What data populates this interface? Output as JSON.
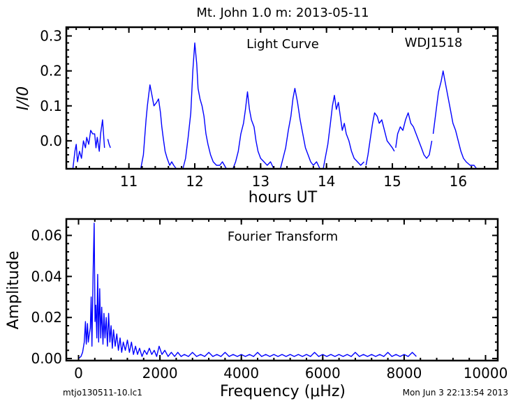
{
  "figure": {
    "suptitle": "Mt. John 1.0 m:  2013-05-11",
    "footer_left": "mtjo130511-10.lc1",
    "footer_right": "Mon Jun  3 22:13:54 2013"
  },
  "chart_data": [
    {
      "type": "line",
      "name": "light-curve",
      "annotation": "Light Curve",
      "object_label": "WDJ1518",
      "xlabel": "hours UT",
      "ylabel": "I/I0",
      "xlim": [
        10.05,
        16.6
      ],
      "ylim": [
        -0.08,
        0.325
      ],
      "xticks": [
        11,
        12,
        13,
        14,
        15,
        16
      ],
      "yticks": [
        0.0,
        0.1,
        0.2,
        0.3
      ],
      "ytick_labels": [
        "0.0",
        "0.1",
        "0.2",
        "0.3"
      ],
      "grid": false,
      "segments": [
        [
          [
            10.15,
            -0.08
          ],
          [
            10.18,
            -0.03
          ],
          [
            10.2,
            -0.01
          ],
          [
            10.22,
            -0.06
          ],
          [
            10.25,
            -0.03
          ],
          [
            10.28,
            -0.05
          ],
          [
            10.31,
            0.0
          ],
          [
            10.34,
            -0.02
          ],
          [
            10.36,
            0.01
          ],
          [
            10.39,
            -0.01
          ],
          [
            10.42,
            0.03
          ],
          [
            10.45,
            0.02
          ],
          [
            10.48,
            0.02
          ],
          [
            10.5,
            -0.02
          ],
          [
            10.52,
            0.01
          ],
          [
            10.55,
            -0.03
          ],
          [
            10.57,
            0.02
          ],
          [
            10.6,
            0.06
          ],
          [
            10.63,
            -0.02
          ]
        ],
        [
          [
            10.68,
            0.005
          ],
          [
            10.7,
            -0.01
          ],
          [
            10.72,
            -0.02
          ]
        ],
        [
          [
            11.18,
            -0.08
          ],
          [
            11.2,
            -0.06
          ],
          [
            11.22,
            -0.04
          ],
          [
            11.24,
            0.01
          ],
          [
            11.26,
            0.06
          ],
          [
            11.28,
            0.1
          ],
          [
            11.3,
            0.13
          ],
          [
            11.32,
            0.16
          ],
          [
            11.35,
            0.13
          ],
          [
            11.38,
            0.1
          ],
          [
            11.42,
            0.11
          ],
          [
            11.45,
            0.12
          ],
          [
            11.48,
            0.08
          ],
          [
            11.5,
            0.04
          ],
          [
            11.52,
            0.01
          ],
          [
            11.55,
            -0.03
          ],
          [
            11.58,
            -0.05
          ],
          [
            11.62,
            -0.07
          ],
          [
            11.65,
            -0.06
          ],
          [
            11.68,
            -0.07
          ],
          [
            11.72,
            -0.08
          ]
        ],
        [
          [
            11.82,
            -0.08
          ],
          [
            11.86,
            -0.05
          ],
          [
            11.9,
            0.01
          ],
          [
            11.94,
            0.08
          ],
          [
            11.97,
            0.2
          ],
          [
            12.0,
            0.28
          ],
          [
            12.03,
            0.22
          ],
          [
            12.05,
            0.15
          ],
          [
            12.08,
            0.12
          ],
          [
            12.11,
            0.1
          ],
          [
            12.14,
            0.07
          ],
          [
            12.17,
            0.02
          ],
          [
            12.2,
            -0.01
          ],
          [
            12.24,
            -0.04
          ],
          [
            12.28,
            -0.06
          ],
          [
            12.33,
            -0.07
          ],
          [
            12.38,
            -0.07
          ],
          [
            12.42,
            -0.06
          ],
          [
            12.48,
            -0.08
          ]
        ],
        [
          [
            12.58,
            -0.08
          ],
          [
            12.62,
            -0.06
          ],
          [
            12.66,
            -0.03
          ],
          [
            12.7,
            0.02
          ],
          [
            12.74,
            0.05
          ],
          [
            12.77,
            0.09
          ],
          [
            12.8,
            0.14
          ],
          [
            12.83,
            0.09
          ],
          [
            12.86,
            0.06
          ],
          [
            12.9,
            0.04
          ],
          [
            12.93,
            0.0
          ],
          [
            12.96,
            -0.03
          ],
          [
            13.0,
            -0.05
          ],
          [
            13.05,
            -0.06
          ],
          [
            13.1,
            -0.07
          ],
          [
            13.15,
            -0.06
          ],
          [
            13.2,
            -0.08
          ]
        ],
        [
          [
            13.3,
            -0.08
          ],
          [
            13.34,
            -0.05
          ],
          [
            13.38,
            -0.02
          ],
          [
            13.42,
            0.03
          ],
          [
            13.46,
            0.07
          ],
          [
            13.49,
            0.12
          ],
          [
            13.52,
            0.15
          ],
          [
            13.56,
            0.11
          ],
          [
            13.6,
            0.06
          ],
          [
            13.64,
            0.02
          ],
          [
            13.68,
            -0.02
          ],
          [
            13.72,
            -0.04
          ],
          [
            13.76,
            -0.06
          ],
          [
            13.8,
            -0.07
          ],
          [
            13.85,
            -0.06
          ],
          [
            13.9,
            -0.08
          ]
        ],
        [
          [
            13.95,
            -0.08
          ],
          [
            13.98,
            -0.05
          ],
          [
            14.02,
            -0.01
          ],
          [
            14.06,
            0.05
          ],
          [
            14.09,
            0.1
          ],
          [
            14.12,
            0.13
          ],
          [
            14.15,
            0.09
          ],
          [
            14.18,
            0.11
          ],
          [
            14.21,
            0.07
          ],
          [
            14.24,
            0.03
          ],
          [
            14.27,
            0.05
          ],
          [
            14.3,
            0.02
          ],
          [
            14.34,
            0.0
          ],
          [
            14.38,
            -0.03
          ],
          [
            14.42,
            -0.05
          ],
          [
            14.47,
            -0.06
          ],
          [
            14.52,
            -0.07
          ],
          [
            14.57,
            -0.06
          ]
        ],
        [
          [
            14.6,
            -0.07
          ],
          [
            14.63,
            -0.04
          ],
          [
            14.66,
            0.0
          ],
          [
            14.7,
            0.05
          ],
          [
            14.73,
            0.08
          ],
          [
            14.77,
            0.07
          ],
          [
            14.8,
            0.05
          ],
          [
            14.84,
            0.06
          ],
          [
            14.88,
            0.03
          ],
          [
            14.92,
            0.0
          ],
          [
            14.96,
            -0.01
          ],
          [
            15.0,
            -0.02
          ],
          [
            15.03,
            -0.03
          ]
        ],
        [
          [
            15.05,
            -0.02
          ],
          [
            15.08,
            0.02
          ],
          [
            15.12,
            0.04
          ],
          [
            15.16,
            0.03
          ],
          [
            15.2,
            0.06
          ],
          [
            15.24,
            0.08
          ],
          [
            15.28,
            0.05
          ],
          [
            15.32,
            0.04
          ],
          [
            15.36,
            0.02
          ],
          [
            15.4,
            0.0
          ],
          [
            15.44,
            -0.02
          ],
          [
            15.48,
            -0.04
          ],
          [
            15.52,
            -0.05
          ],
          [
            15.56,
            -0.04
          ],
          [
            15.6,
            0.0
          ]
        ],
        [
          [
            15.62,
            0.02
          ],
          [
            15.66,
            0.08
          ],
          [
            15.7,
            0.14
          ],
          [
            15.74,
            0.17
          ],
          [
            15.77,
            0.2
          ],
          [
            15.8,
            0.17
          ],
          [
            15.84,
            0.13
          ],
          [
            15.88,
            0.09
          ],
          [
            15.92,
            0.05
          ],
          [
            15.96,
            0.03
          ],
          [
            16.0,
            0.0
          ],
          [
            16.04,
            -0.03
          ],
          [
            16.08,
            -0.05
          ],
          [
            16.12,
            -0.06
          ],
          [
            16.18,
            -0.07
          ],
          [
            16.24,
            -0.07
          ],
          [
            16.28,
            -0.08
          ]
        ]
      ]
    },
    {
      "type": "line",
      "name": "fourier-transform",
      "annotation": "Fourier Transform",
      "xlabel": "Frequency (μHz)",
      "ylabel": "Amplitude",
      "xlim": [
        -300,
        10300
      ],
      "ylim": [
        -0.001,
        0.068
      ],
      "xticks": [
        0,
        2000,
        4000,
        6000,
        8000,
        10000
      ],
      "yticks": [
        0.0,
        0.02,
        0.04,
        0.06
      ],
      "ytick_labels": [
        "0.00",
        "0.02",
        "0.04",
        "0.06"
      ],
      "grid": false,
      "points": [
        [
          0,
          0
        ],
        [
          60,
          0.001
        ],
        [
          100,
          0.003
        ],
        [
          140,
          0.008
        ],
        [
          170,
          0.018
        ],
        [
          190,
          0.007
        ],
        [
          220,
          0.017
        ],
        [
          240,
          0.008
        ],
        [
          260,
          0.011
        ],
        [
          290,
          0.015
        ],
        [
          310,
          0.03
        ],
        [
          330,
          0.006
        ],
        [
          360,
          0.044
        ],
        [
          385,
          0.066
        ],
        [
          405,
          0.018
        ],
        [
          425,
          0.026
        ],
        [
          450,
          0.01
        ],
        [
          470,
          0.041
        ],
        [
          495,
          0.008
        ],
        [
          520,
          0.034
        ],
        [
          545,
          0.01
        ],
        [
          570,
          0.025
        ],
        [
          600,
          0.007
        ],
        [
          625,
          0.022
        ],
        [
          650,
          0.01
        ],
        [
          680,
          0.02
        ],
        [
          710,
          0.006
        ],
        [
          740,
          0.022
        ],
        [
          770,
          0.008
        ],
        [
          800,
          0.016
        ],
        [
          830,
          0.005
        ],
        [
          860,
          0.014
        ],
        [
          900,
          0.006
        ],
        [
          940,
          0.012
        ],
        [
          980,
          0.004
        ],
        [
          1020,
          0.01
        ],
        [
          1060,
          0.003
        ],
        [
          1100,
          0.008
        ],
        [
          1150,
          0.004
        ],
        [
          1200,
          0.009
        ],
        [
          1250,
          0.003
        ],
        [
          1300,
          0.008
        ],
        [
          1350,
          0.002
        ],
        [
          1400,
          0.006
        ],
        [
          1450,
          0.002
        ],
        [
          1500,
          0.005
        ],
        [
          1560,
          0.001
        ],
        [
          1620,
          0.004
        ],
        [
          1680,
          0.002
        ],
        [
          1740,
          0.005
        ],
        [
          1800,
          0.002
        ],
        [
          1860,
          0.004
        ],
        [
          1920,
          0.001
        ],
        [
          1980,
          0.006
        ],
        [
          2050,
          0.002
        ],
        [
          2120,
          0.004
        ],
        [
          2200,
          0.001
        ],
        [
          2280,
          0.003
        ],
        [
          2360,
          0.001
        ],
        [
          2440,
          0.003
        ],
        [
          2520,
          0.001
        ],
        [
          2600,
          0.002
        ],
        [
          2700,
          0.001
        ],
        [
          2800,
          0.003
        ],
        [
          2900,
          0.001
        ],
        [
          3000,
          0.002
        ],
        [
          3100,
          0.001
        ],
        [
          3200,
          0.003
        ],
        [
          3300,
          0.001
        ],
        [
          3400,
          0.002
        ],
        [
          3500,
          0.001
        ],
        [
          3600,
          0.003
        ],
        [
          3700,
          0.001
        ],
        [
          3800,
          0.002
        ],
        [
          3900,
          0.001
        ],
        [
          4000,
          0.002
        ],
        [
          4100,
          0.001
        ],
        [
          4200,
          0.002
        ],
        [
          4300,
          0.001
        ],
        [
          4400,
          0.003
        ],
        [
          4500,
          0.001
        ],
        [
          4600,
          0.002
        ],
        [
          4700,
          0.001
        ],
        [
          4800,
          0.002
        ],
        [
          4900,
          0.001
        ],
        [
          5000,
          0.002
        ],
        [
          5100,
          0.001
        ],
        [
          5200,
          0.002
        ],
        [
          5300,
          0.001
        ],
        [
          5400,
          0.002
        ],
        [
          5500,
          0.001
        ],
        [
          5600,
          0.002
        ],
        [
          5700,
          0.001
        ],
        [
          5800,
          0.003
        ],
        [
          5900,
          0.001
        ],
        [
          6000,
          0.002
        ],
        [
          6100,
          0.001
        ],
        [
          6200,
          0.002
        ],
        [
          6300,
          0.001
        ],
        [
          6400,
          0.002
        ],
        [
          6500,
          0.001
        ],
        [
          6600,
          0.002
        ],
        [
          6700,
          0.001
        ],
        [
          6800,
          0.003
        ],
        [
          6900,
          0.001
        ],
        [
          7000,
          0.002
        ],
        [
          7100,
          0.001
        ],
        [
          7200,
          0.002
        ],
        [
          7300,
          0.001
        ],
        [
          7400,
          0.002
        ],
        [
          7500,
          0.001
        ],
        [
          7600,
          0.003
        ],
        [
          7700,
          0.001
        ],
        [
          7800,
          0.002
        ],
        [
          7900,
          0.001
        ],
        [
          8000,
          0.002
        ],
        [
          8100,
          0.001
        ],
        [
          8200,
          0.003
        ],
        [
          8300,
          0.001
        ]
      ]
    }
  ]
}
